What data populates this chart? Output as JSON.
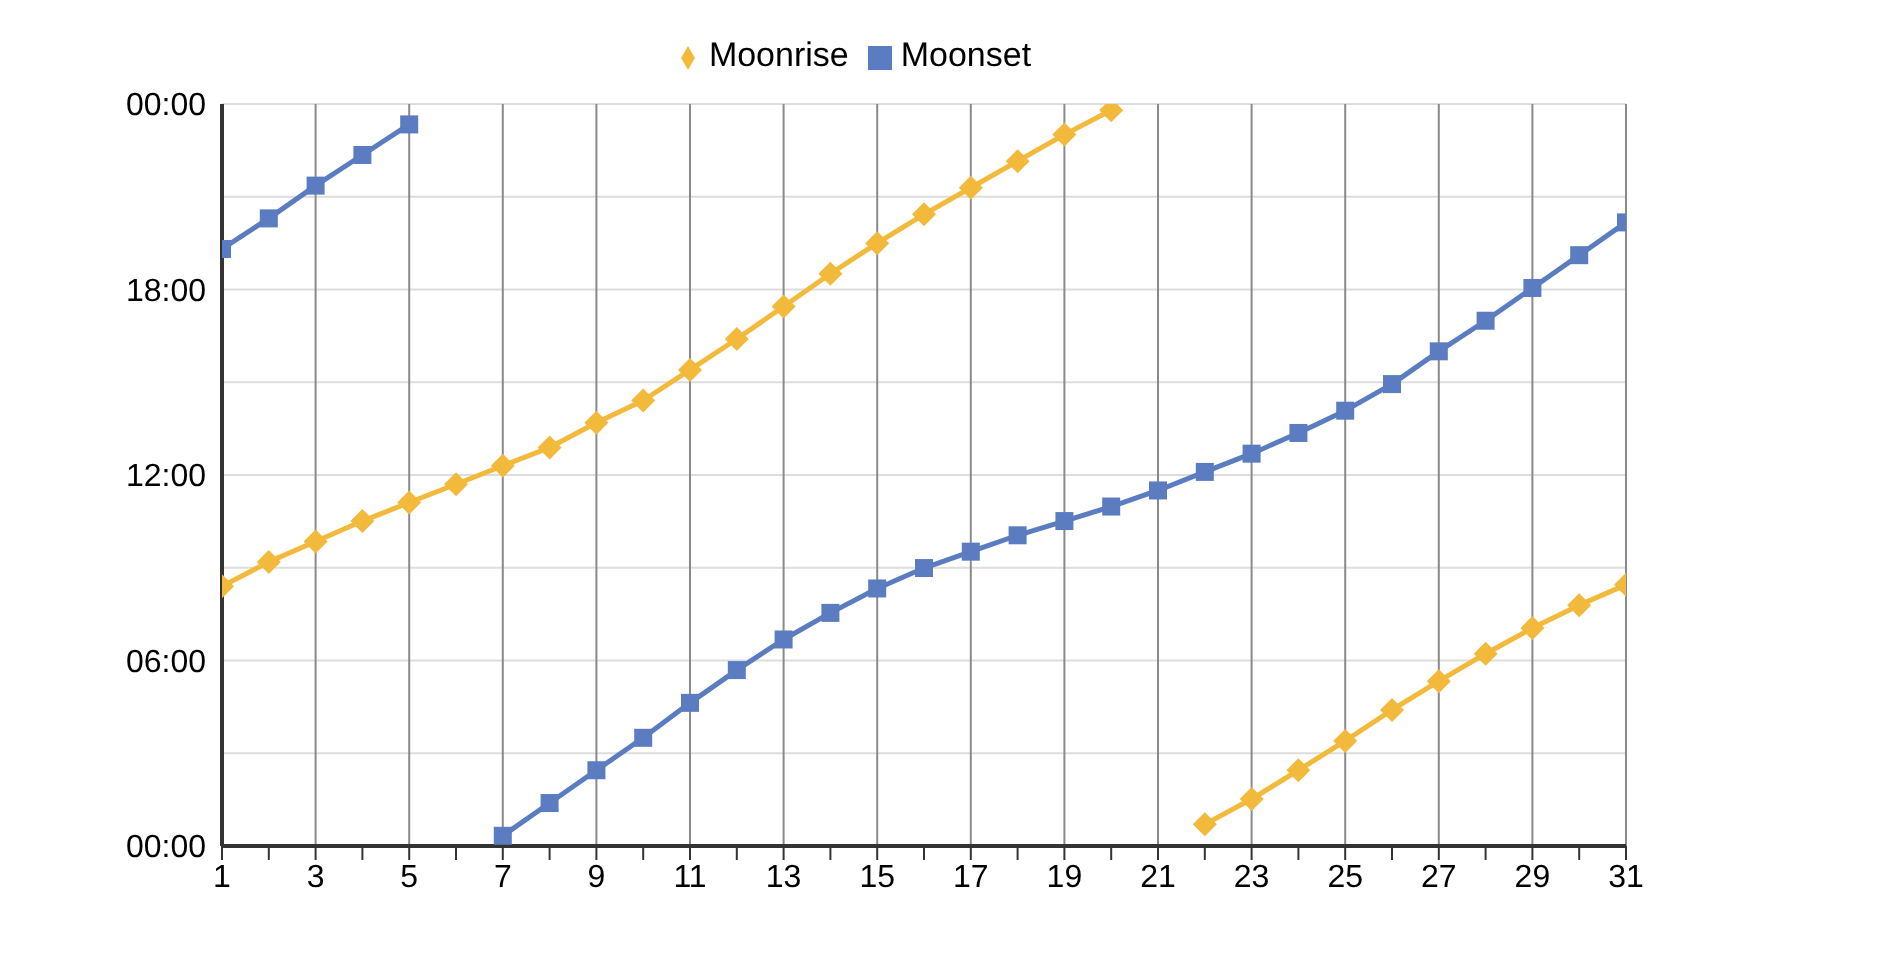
{
  "chart_data": {
    "type": "line",
    "x": [
      1,
      2,
      3,
      4,
      5,
      6,
      7,
      8,
      9,
      10,
      11,
      12,
      13,
      14,
      15,
      16,
      17,
      18,
      19,
      20,
      21,
      22,
      23,
      24,
      25,
      26,
      27,
      28,
      29,
      30,
      31
    ],
    "series": [
      {
        "name": "Moonrise",
        "color": "#f3b93b",
        "marker": "diamond",
        "values": [
          8.4,
          9.19,
          9.85,
          10.51,
          11.11,
          11.7,
          12.3,
          12.89,
          13.69,
          14.41,
          15.4,
          16.4,
          17.45,
          18.51,
          19.5,
          20.43,
          21.29,
          22.15,
          23.01,
          23.8,
          null,
          0.7,
          1.52,
          2.45,
          3.4,
          4.4,
          5.33,
          6.22,
          7.05,
          7.79,
          8.45
        ]
      },
      {
        "name": "Moonset",
        "color": "#5b7cc0",
        "marker": "square",
        "values": [
          19.31,
          20.3,
          21.36,
          22.35,
          23.34,
          null,
          0.33,
          1.39,
          2.45,
          3.5,
          4.63,
          5.69,
          6.68,
          7.54,
          8.33,
          8.99,
          9.52,
          10.05,
          10.51,
          10.98,
          11.5,
          12.1,
          12.69,
          13.36,
          14.08,
          14.94,
          16.0,
          16.99,
          18.05,
          19.11,
          20.17
        ]
      }
    ],
    "xlim": [
      1,
      31
    ],
    "xticks": [
      1,
      {
        "value": 2,
        "label": null
      },
      3,
      {
        "value": 4,
        "label": null
      },
      5,
      {
        "value": 6,
        "label": null
      },
      7,
      {
        "value": 8,
        "label": null
      },
      9,
      {
        "value": 10,
        "label": null
      },
      11,
      {
        "value": 12,
        "label": null
      },
      13,
      {
        "value": 14,
        "label": null
      },
      15,
      {
        "value": 16,
        "label": null
      },
      17,
      {
        "value": 18,
        "label": null
      },
      19,
      {
        "value": 20,
        "label": null
      },
      21,
      {
        "value": 22,
        "label": null
      },
      23,
      {
        "value": 24,
        "label": null
      },
      25,
      {
        "value": 26,
        "label": null
      },
      27,
      {
        "value": 28,
        "label": null
      },
      29,
      {
        "value": 30,
        "label": null
      },
      31
    ],
    "ylim": [
      0,
      24
    ],
    "yticks": [
      {
        "value": 0,
        "label": "00:00"
      },
      {
        "value": 3,
        "label": null
      },
      {
        "value": 6,
        "label": "06:00"
      },
      {
        "value": 9,
        "label": null
      },
      {
        "value": 12,
        "label": "12:00"
      },
      {
        "value": 15,
        "label": null
      },
      {
        "value": 18,
        "label": "18:00"
      },
      {
        "value": 21,
        "label": null
      },
      {
        "value": 24,
        "label": "00:00"
      }
    ],
    "grid": true,
    "legend": "top",
    "line_style": "solid"
  }
}
